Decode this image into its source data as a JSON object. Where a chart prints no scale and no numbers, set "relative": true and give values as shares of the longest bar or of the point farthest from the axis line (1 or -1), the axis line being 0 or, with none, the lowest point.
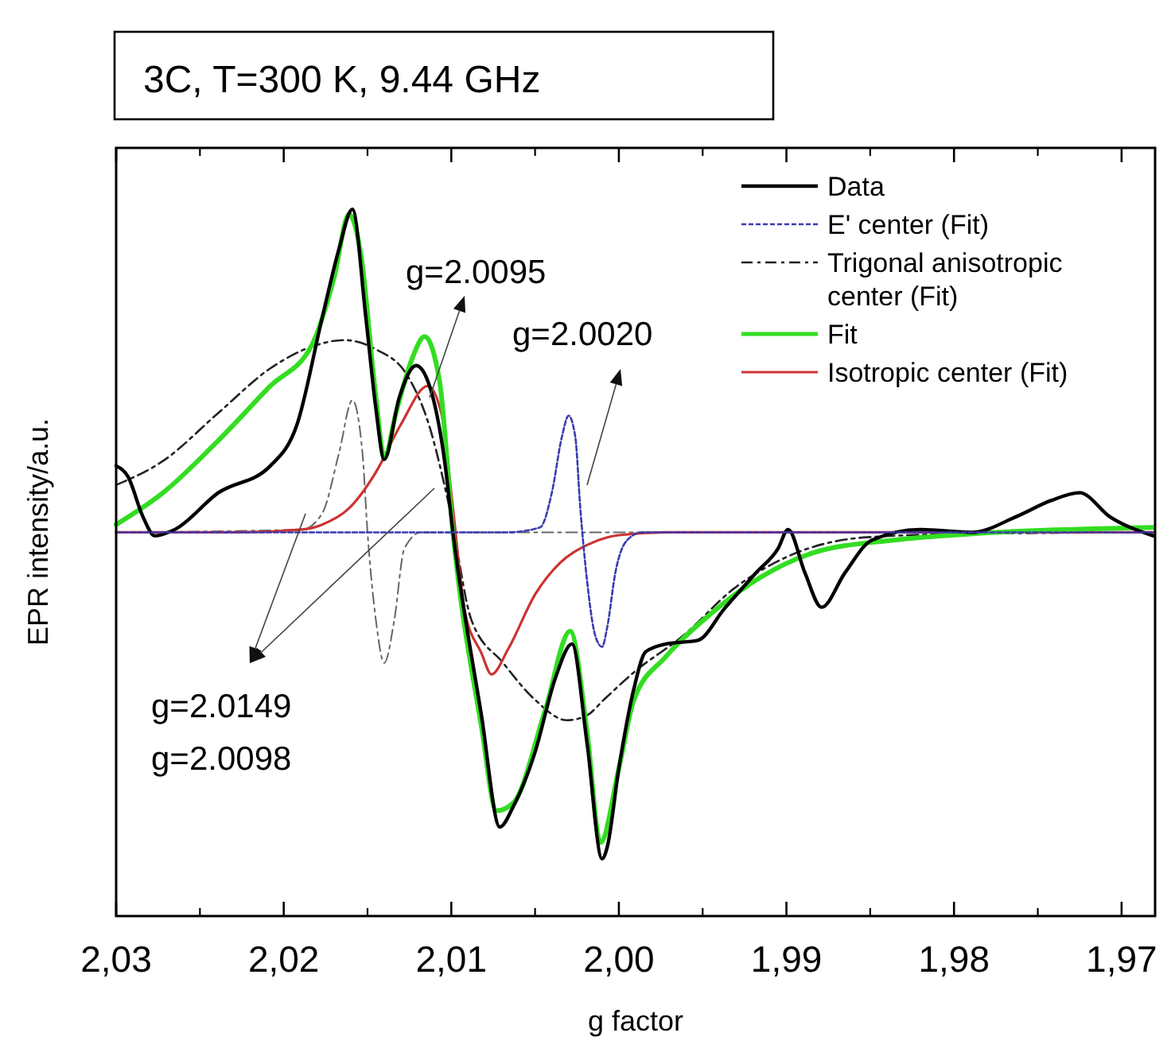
{
  "chart_data": {
    "type": "line",
    "title": "3C, T=300 K, 9.44 GHz",
    "xlabel": "g factor",
    "ylabel": "EPR intensity/a.u.",
    "relative": true,
    "xlim": [
      2.03,
      1.968
    ],
    "xticks": [
      {
        "value": 2.03,
        "label": "2,03"
      },
      {
        "value": 2.02,
        "label": "2,02"
      },
      {
        "value": 2.01,
        "label": "2,01"
      },
      {
        "value": 2.0,
        "label": "2,00"
      },
      {
        "value": 1.99,
        "label": "1,99"
      },
      {
        "value": 1.98,
        "label": "1,98"
      },
      {
        "value": 1.97,
        "label": "1,97"
      }
    ],
    "legend": "top right",
    "grid": false,
    "marker": "none",
    "annotations": [
      "g=2.0095",
      "g=2.0020",
      "g=2.0149",
      "g=2.0098"
    ],
    "series": [
      {
        "name": "Data",
        "color": "#000000",
        "line_style": "solid",
        "x": [
          2.03,
          2.0293,
          2.0284,
          2.0277,
          2.0265,
          2.0239,
          2.0208,
          2.0192,
          2.0177,
          2.0167,
          2.0159,
          2.0151,
          2.0145,
          2.014,
          2.0131,
          2.0121,
          2.0114,
          2.0104,
          2.0099,
          2.0082,
          2.0071,
          2.0063,
          2.005,
          2.0038,
          2.0028,
          2.0019,
          2.001,
          2.0007,
          2.0,
          1.9991,
          1.9984,
          1.9972,
          1.9953,
          1.9937,
          1.9918,
          1.9905,
          1.9899,
          1.9889,
          1.9879,
          1.9865,
          1.9849,
          1.982,
          1.9789,
          1.9763,
          1.9742,
          1.9725,
          1.9707,
          1.9681
        ],
        "values": [
          0.637,
          0.622,
          0.565,
          0.538,
          0.547,
          0.599,
          0.637,
          0.696,
          0.847,
          0.944,
          1.0,
          0.847,
          0.718,
          0.646,
          0.734,
          0.779,
          0.757,
          0.644,
          0.543,
          0.284,
          0.126,
          0.155,
          0.232,
          0.336,
          0.385,
          0.245,
          0.081,
          0.097,
          0.209,
          0.322,
          0.374,
          0.385,
          0.39,
          0.435,
          0.486,
          0.52,
          0.547,
          0.486,
          0.437,
          0.486,
          0.532,
          0.547,
          0.543,
          0.565,
          0.588,
          0.599,
          0.565,
          0.538
        ]
      },
      {
        "name": "E' center (Fit)",
        "color": "#3a3ab0",
        "line_style": "dashed",
        "x": [
          2.03,
          2.0066,
          2.0047,
          2.004,
          2.0034,
          2.003,
          2.0026,
          2.0023,
          2.0019,
          2.0014,
          2.001,
          2.0007,
          2.0002,
          1.9995,
          1.9986,
          1.9681
        ],
        "values": [
          0.543,
          0.543,
          0.55,
          0.599,
          0.678,
          0.708,
          0.678,
          0.577,
          0.475,
          0.396,
          0.381,
          0.408,
          0.487,
          0.532,
          0.543,
          0.543
        ]
      },
      {
        "name": "Trigonal anisotropic center (Fit)",
        "color": "#222222",
        "line_style": "dashdot",
        "x": [
          2.03,
          2.0272,
          2.0239,
          2.0208,
          2.0183,
          2.0164,
          2.0145,
          2.0126,
          2.0114,
          2.0101,
          2.0088,
          2.0069,
          2.005,
          2.0031,
          2.0019,
          2.0009,
          1.9991,
          1.9962,
          1.9931,
          1.9899,
          1.9852,
          1.9789,
          1.9681
        ],
        "values": [
          0.61,
          0.644,
          0.712,
          0.775,
          0.806,
          0.815,
          0.802,
          0.764,
          0.7,
          0.577,
          0.419,
          0.358,
          0.306,
          0.277,
          0.284,
          0.306,
          0.345,
          0.396,
          0.464,
          0.509,
          0.536,
          0.541,
          0.543
        ]
      },
      {
        "name": "Fit",
        "color": "#33dd22",
        "line_style": "solid",
        "x": [
          2.03,
          2.0272,
          2.0239,
          2.0208,
          2.0183,
          2.017,
          2.0161,
          2.0154,
          2.0145,
          2.014,
          2.0133,
          2.0123,
          2.0116,
          2.0107,
          2.0099,
          2.0082,
          2.0073,
          2.0063,
          2.0044,
          2.0029,
          2.0019,
          2.0011,
          2.0,
          1.9991,
          1.9972,
          1.9946,
          1.9915,
          1.9884,
          1.9836,
          1.9789,
          1.9681
        ],
        "values": [
          0.554,
          0.599,
          0.673,
          0.75,
          0.809,
          0.903,
          0.993,
          0.937,
          0.734,
          0.649,
          0.712,
          0.791,
          0.82,
          0.757,
          0.543,
          0.268,
          0.149,
          0.16,
          0.291,
          0.403,
          0.261,
          0.104,
          0.209,
          0.306,
          0.367,
          0.426,
          0.48,
          0.514,
          0.532,
          0.541,
          0.55
        ]
      },
      {
        "name": "Isotropic center (Fit)",
        "color": "#cc3333",
        "line_style": "solid",
        "x": [
          2.03,
          2.0227,
          2.0189,
          2.0177,
          2.0161,
          2.0145,
          2.013,
          2.0114,
          2.0106,
          2.0099,
          2.0092,
          2.0082,
          2.0076,
          2.0066,
          2.005,
          2.0035,
          2.0019,
          2.0,
          1.9972,
          1.9681
        ],
        "values": [
          0.543,
          0.543,
          0.547,
          0.554,
          0.577,
          0.628,
          0.696,
          0.75,
          0.712,
          0.577,
          0.432,
          0.372,
          0.342,
          0.378,
          0.455,
          0.5,
          0.525,
          0.539,
          0.543,
          0.543
        ]
      },
      {
        "color": "#666666",
        "line_style": "dashdot",
        "x": [
          2.03,
          2.0189,
          2.0177,
          2.0167,
          2.0159,
          2.0153,
          2.015,
          2.0145,
          2.014,
          2.0134,
          2.0128,
          2.0118,
          1.9681
        ],
        "values": [
          0.543,
          0.547,
          0.57,
          0.655,
          0.73,
          0.655,
          0.543,
          0.419,
          0.358,
          0.419,
          0.52,
          0.543,
          0.543
        ]
      }
    ]
  }
}
